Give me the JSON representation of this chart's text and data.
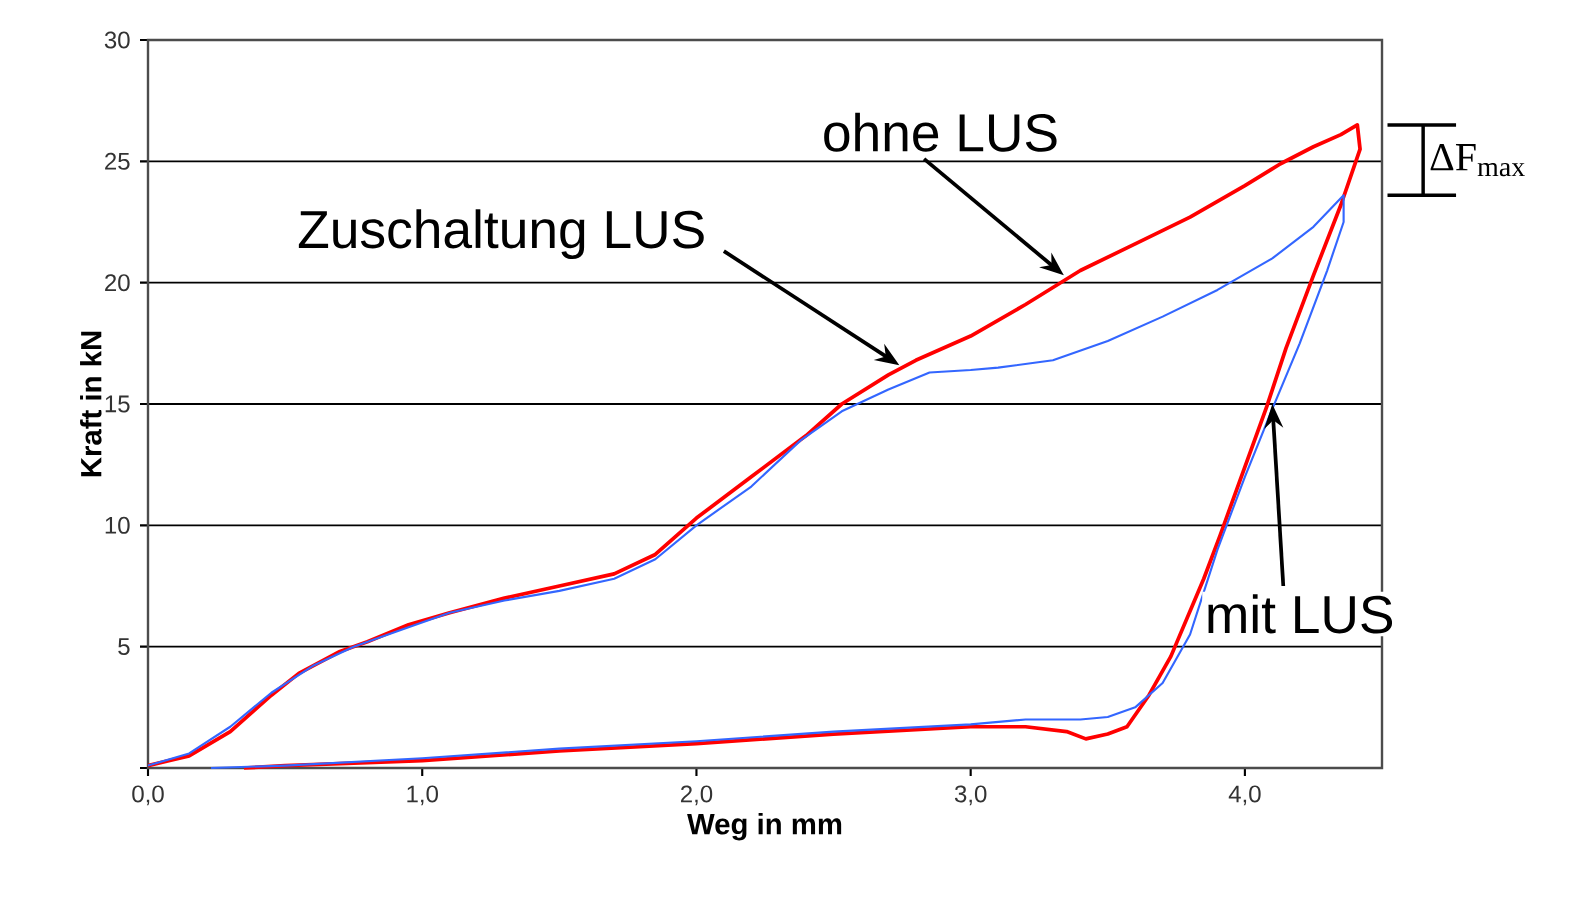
{
  "chart_data": {
    "type": "line",
    "xlabel": "Weg in mm",
    "ylabel": "Kraft in kN",
    "xlim": [
      0,
      4.5
    ],
    "ylim": [
      0,
      30
    ],
    "xticks": [
      {
        "value": 0,
        "label": "0,0"
      },
      {
        "value": 1,
        "label": "1,0"
      },
      {
        "value": 2,
        "label": "2,0"
      },
      {
        "value": 3,
        "label": "3,0"
      },
      {
        "value": 4,
        "label": "4,0"
      }
    ],
    "yticks": [
      {
        "value": 0,
        "label": null
      },
      5,
      10,
      15,
      20,
      25,
      30
    ],
    "grid": "y",
    "marker": "none",
    "line_style": "solid",
    "series": [
      {
        "color": "#ff0000",
        "x": [
          0,
          0.15,
          0.3,
          0.45,
          0.55,
          0.7,
          0.8,
          0.95,
          1.1,
          1.3,
          1.5,
          1.7,
          1.85,
          2.0,
          2.2,
          2.4,
          2.53,
          2.7,
          2.8,
          3.0,
          3.2,
          3.4,
          3.6,
          3.8,
          4.0,
          4.13,
          4.25,
          4.35,
          4.41,
          4.42,
          4.35,
          4.25,
          4.15,
          4.08,
          3.91,
          3.85,
          3.73,
          3.65,
          3.57,
          3.5,
          3.42,
          3.35,
          3.2,
          3.0,
          2.5,
          2.0,
          1.5,
          1.0,
          0.5,
          0.35
        ],
        "values": [
          0.1,
          0.5,
          1.5,
          3.0,
          3.9,
          4.8,
          5.2,
          5.9,
          6.4,
          7.0,
          7.5,
          8.0,
          8.8,
          10.3,
          12.0,
          13.7,
          15.0,
          16.2,
          16.8,
          17.8,
          19.1,
          20.5,
          21.6,
          22.7,
          24.0,
          24.9,
          25.6,
          26.1,
          26.5,
          25.5,
          23.2,
          20.3,
          17.3,
          14.9,
          9.6,
          7.8,
          4.6,
          3.0,
          1.7,
          1.4,
          1.2,
          1.5,
          1.7,
          1.7,
          1.4,
          1.0,
          0.7,
          0.3,
          0.1,
          0
        ]
      },
      {
        "color": "#3366ff",
        "x": [
          0,
          0.15,
          0.3,
          0.45,
          0.6,
          0.75,
          0.95,
          1.1,
          1.3,
          1.5,
          1.7,
          1.85,
          2.0,
          2.2,
          2.38,
          2.53,
          2.7,
          2.85,
          3.0,
          3.1,
          3.3,
          3.5,
          3.7,
          3.9,
          4.1,
          4.25,
          4.36,
          4.36,
          4.3,
          4.2,
          4.1,
          4.0,
          3.9,
          3.8,
          3.7,
          3.6,
          3.5,
          3.4,
          3.2,
          3.0,
          2.5,
          2.0,
          1.5,
          1.0,
          0.5,
          0.23
        ],
        "values": [
          0.1,
          0.6,
          1.7,
          3.1,
          4.2,
          5.0,
          5.8,
          6.4,
          6.9,
          7.3,
          7.8,
          8.6,
          10.0,
          11.6,
          13.5,
          14.7,
          15.6,
          16.3,
          16.4,
          16.5,
          16.8,
          17.6,
          18.6,
          19.7,
          21.0,
          22.3,
          23.6,
          22.5,
          20.5,
          17.5,
          14.8,
          12.0,
          9.0,
          5.5,
          3.5,
          2.5,
          2.1,
          2.0,
          2.0,
          1.8,
          1.5,
          1.1,
          0.8,
          0.4,
          0.1,
          0
        ]
      }
    ],
    "annotations": [
      {
        "text": "ohne LUS",
        "x": 3.34,
        "y": 20.3
      },
      {
        "text": "Zuschaltung LUS",
        "x": 2.74,
        "y": 16.6
      },
      {
        "text": "mit LUS",
        "x": 4.1,
        "y": 15
      },
      "ΔF$_{max}$"
    ]
  }
}
